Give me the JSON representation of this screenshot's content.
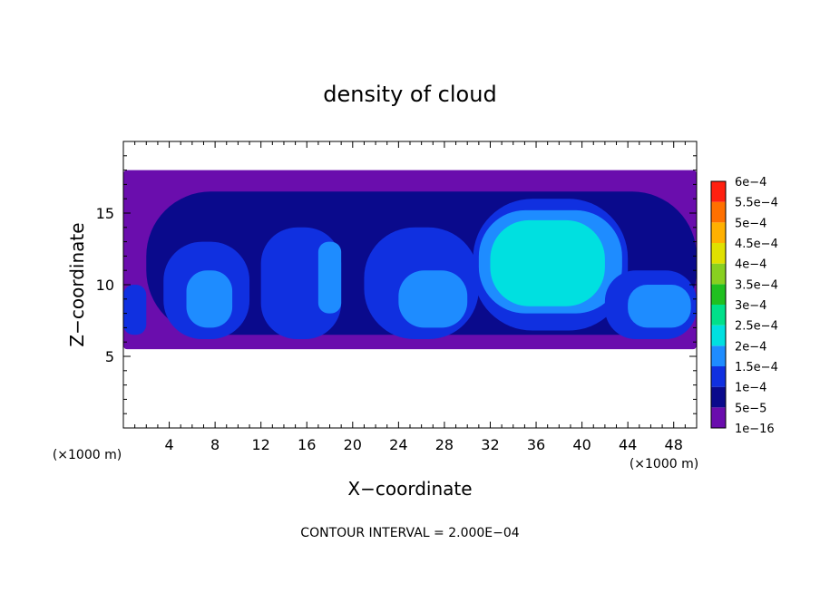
{
  "chart_data": {
    "type": "heatmap",
    "title": "density of cloud",
    "xlabel": "X−coordinate",
    "ylabel": "Z−coordinate",
    "x_unit": "(×1000 m)",
    "z_unit": "(×1000 m)",
    "xlim": [
      0,
      50
    ],
    "ylim": [
      0,
      20
    ],
    "x_ticks": [
      4,
      8,
      12,
      16,
      20,
      24,
      28,
      32,
      36,
      40,
      44,
      48
    ],
    "y_ticks": [
      5,
      10,
      15
    ],
    "footer": "CONTOUR INTERVAL = 2.000E−04",
    "colorbar": {
      "levels": [
        {
          "label": "1e−16",
          "color": "#6a0dad"
        },
        {
          "label": "5e−5",
          "color": "#0a0a8c"
        },
        {
          "label": "1e−4",
          "color": "#1030e0"
        },
        {
          "label": "1.5e−4",
          "color": "#1e8cff"
        },
        {
          "label": "2e−4",
          "color": "#00e0e0"
        },
        {
          "label": "2.5e−4",
          "color": "#00e08a"
        },
        {
          "label": "3e−4",
          "color": "#20c020"
        },
        {
          "label": "3.5e−4",
          "color": "#88d020"
        },
        {
          "label": "4e−4",
          "color": "#e0e000"
        },
        {
          "label": "4.5e−4",
          "color": "#ffb000"
        },
        {
          "label": "5e−4",
          "color": "#ff7000"
        },
        {
          "label": "5.5e−4",
          "color": "#ff2010"
        },
        {
          "label": "6e−4",
          "color": "#ff8080"
        }
      ]
    },
    "cells": [
      {
        "x": [
          0,
          50
        ],
        "z": [
          5.5,
          18
        ],
        "level": 0
      },
      {
        "x": [
          2,
          50
        ],
        "z": [
          6.5,
          16.5
        ],
        "level": 1
      },
      {
        "x": [
          0,
          2
        ],
        "z": [
          6.5,
          10
        ],
        "level": 2
      },
      {
        "x": [
          3.5,
          11
        ],
        "z": [
          6.2,
          13
        ],
        "level": 2
      },
      {
        "x": [
          5.5,
          9.5
        ],
        "z": [
          7,
          11
        ],
        "level": 3
      },
      {
        "x": [
          12,
          19
        ],
        "z": [
          6.2,
          14
        ],
        "level": 2
      },
      {
        "x": [
          17,
          19
        ],
        "z": [
          8,
          13
        ],
        "level": 3
      },
      {
        "x": [
          21,
          31
        ],
        "z": [
          6.2,
          14
        ],
        "level": 2
      },
      {
        "x": [
          24,
          30
        ],
        "z": [
          7,
          11
        ],
        "level": 3
      },
      {
        "x": [
          30.5,
          44
        ],
        "z": [
          6.8,
          16
        ],
        "level": 2
      },
      {
        "x": [
          31,
          43.5
        ],
        "z": [
          8,
          15.2
        ],
        "level": 3
      },
      {
        "x": [
          32,
          42
        ],
        "z": [
          8.5,
          14.5
        ],
        "level": 4
      },
      {
        "x": [
          42,
          50
        ],
        "z": [
          6.2,
          11
        ],
        "level": 2
      },
      {
        "x": [
          44,
          49.5
        ],
        "z": [
          7,
          10
        ],
        "level": 3
      }
    ]
  }
}
